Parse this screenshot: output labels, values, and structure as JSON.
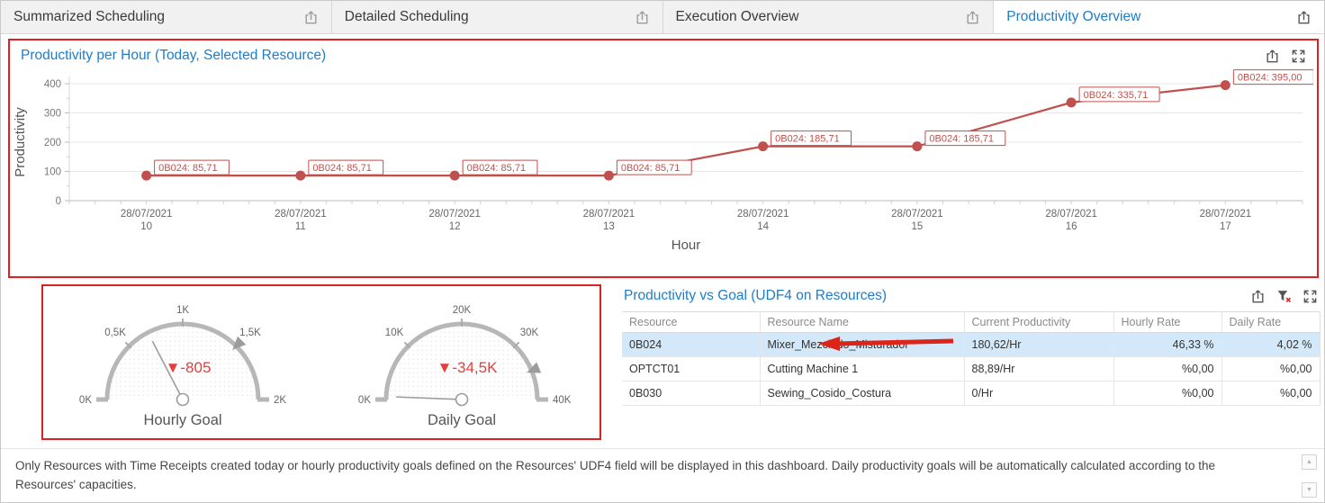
{
  "tabs": [
    {
      "label": "Summarized Scheduling",
      "active": false
    },
    {
      "label": "Detailed Scheduling",
      "active": false
    },
    {
      "label": "Execution Overview",
      "active": false
    },
    {
      "label": "Productivity Overview",
      "active": true
    }
  ],
  "line_panel": {
    "title": "Productivity per Hour (Today, Selected Resource)"
  },
  "table_panel": {
    "title": "Productivity vs Goal (UDF4 on Resources)",
    "columns": [
      "Resource",
      "Resource Name",
      "Current Productivity",
      "Hourly Rate",
      "Daily Rate"
    ],
    "rows": [
      {
        "resource": "0B024",
        "name": "Mixer_Mezclado_Misturador",
        "productivity": "180,62/Hr",
        "hourly": "46,33 %",
        "daily": "4,02 %",
        "selected": true
      },
      {
        "resource": "OPTCT01",
        "name": "Cutting Machine 1",
        "productivity": "88,89/Hr",
        "hourly": "%0,00",
        "daily": "%0,00",
        "selected": false
      },
      {
        "resource": "0B030",
        "name": "Sewing_Cosido_Costura",
        "productivity": "0/Hr",
        "hourly": "%0,00",
        "daily": "%0,00",
        "selected": false
      }
    ]
  },
  "footer": {
    "text": "Only Resources with Time Receipts created today or hourly productivity goals defined on the Resources' UDF4 field will be displayed in this dashboard. Daily productivity goals will be automatically calculated according to the Resources' capacities."
  },
  "colors": {
    "accent_blue": "#1e7dc9",
    "alert_border": "#e02020",
    "series_red": "#c0504d",
    "delta_red": "#e2403c",
    "selected_row": "#d3e8f8"
  },
  "chart_data": [
    {
      "type": "line",
      "title": "Productivity per Hour (Today, Selected Resource)",
      "xlabel": "Hour",
      "ylabel": "Productivity",
      "ylim": [
        0,
        400
      ],
      "yticks": [
        0,
        100,
        200,
        300,
        400
      ],
      "grid": true,
      "legend": "none",
      "series_name": "0B024",
      "color": "#c0504d",
      "categories": [
        {
          "date": "28/07/2021",
          "hour": "10"
        },
        {
          "date": "28/07/2021",
          "hour": "11"
        },
        {
          "date": "28/07/2021",
          "hour": "12"
        },
        {
          "date": "28/07/2021",
          "hour": "13"
        },
        {
          "date": "28/07/2021",
          "hour": "14"
        },
        {
          "date": "28/07/2021",
          "hour": "15"
        },
        {
          "date": "28/07/2021",
          "hour": "16"
        },
        {
          "date": "28/07/2021",
          "hour": "17"
        }
      ],
      "values": [
        85.71,
        85.71,
        85.71,
        85.71,
        185.71,
        185.71,
        335.71,
        395.0
      ],
      "point_labels": [
        "0B024: 85,71",
        "0B024: 85,71",
        "0B024: 85,71",
        "0B024: 85,71",
        "0B024: 185,71",
        "0B024: 185,71",
        "0B024: 335,71",
        "0B024: 395,00"
      ]
    },
    {
      "type": "gauge",
      "title": "Hourly Goal",
      "min": 0,
      "max": 2000,
      "tick_labels": [
        "0K",
        "0,5K",
        "1K",
        "1,5K",
        "2K"
      ],
      "needle_value": 695,
      "target_value": 1500,
      "delta_icon": "▼",
      "delta_label": "-805"
    },
    {
      "type": "gauge",
      "title": "Daily Goal",
      "min": 0,
      "max": 40000,
      "tick_labels": [
        "0K",
        "10K",
        "20K",
        "30K",
        "40K"
      ],
      "needle_value": 500,
      "target_value": 35000,
      "delta_icon": "▼",
      "delta_label": "-34,5K"
    }
  ]
}
